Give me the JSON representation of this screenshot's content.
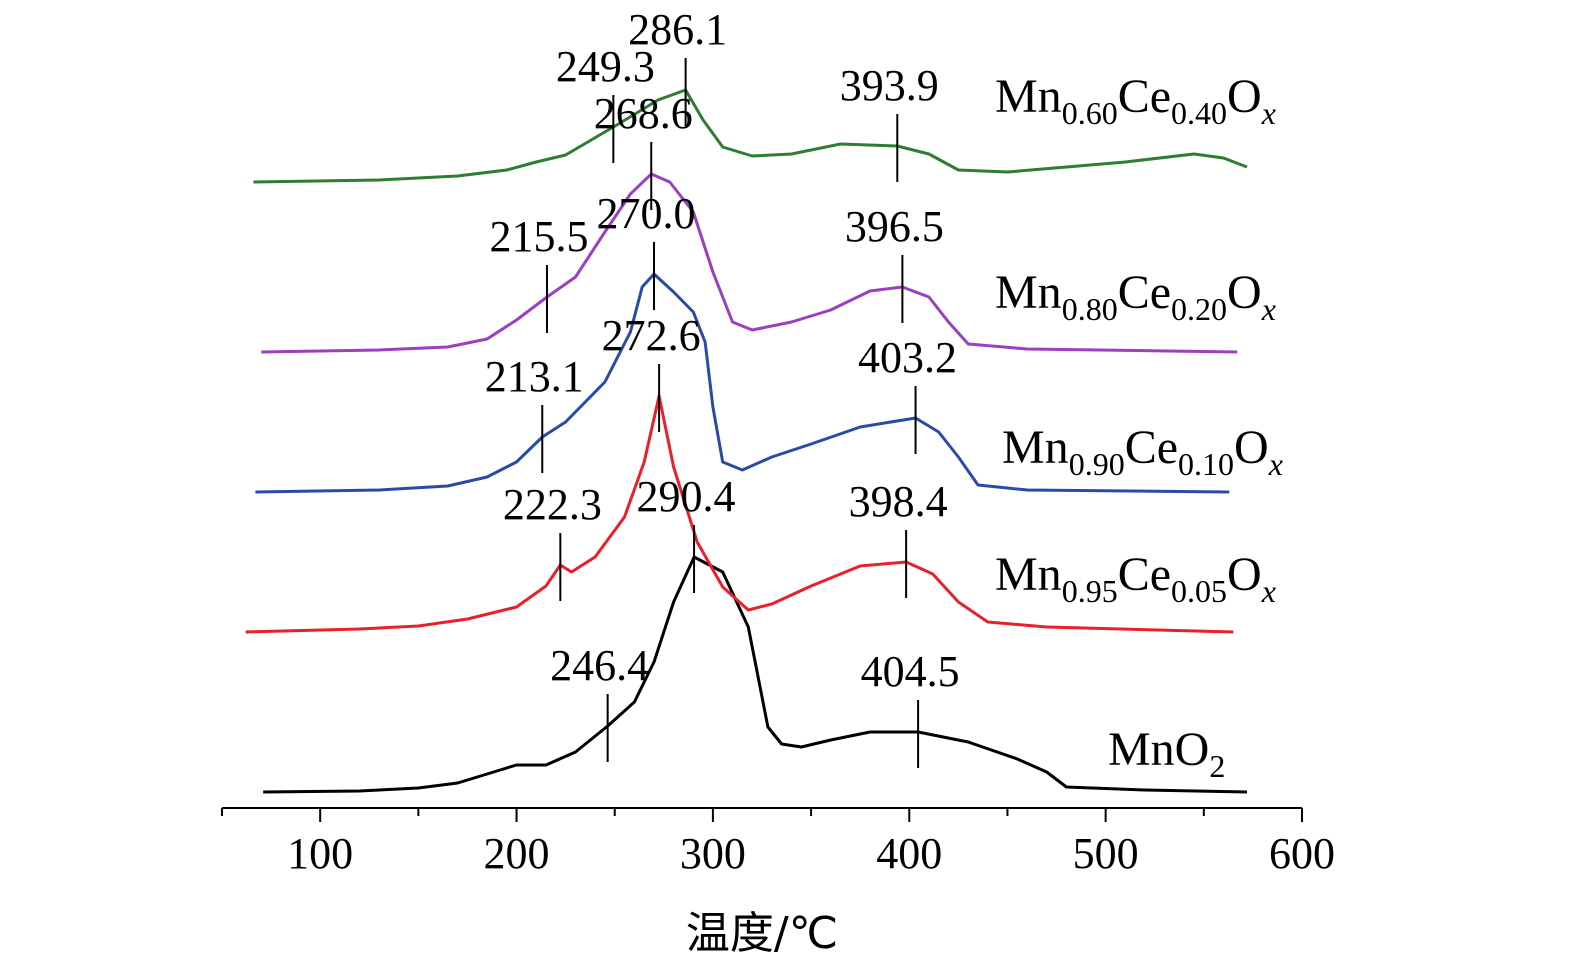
{
  "chart_data": {
    "type": "line",
    "xlabel": "温度/℃",
    "xlim": [
      50,
      600
    ],
    "xticks": [
      100,
      200,
      300,
      400,
      500,
      600
    ],
    "grid": false,
    "series": [
      {
        "name": "MnO2",
        "label": {
          "main": "MnO",
          "sub": "2"
        },
        "color": "#000000",
        "offset": 0,
        "points": [
          [
            71,
            0
          ],
          [
            120,
            1
          ],
          [
            150,
            4
          ],
          [
            170,
            9
          ],
          [
            190,
            21
          ],
          [
            200,
            27
          ],
          [
            215,
            27
          ],
          [
            230,
            40
          ],
          [
            246.4,
            66
          ],
          [
            260,
            90
          ],
          [
            270,
            130
          ],
          [
            280,
            190
          ],
          [
            290.4,
            235
          ],
          [
            305,
            220
          ],
          [
            318,
            165
          ],
          [
            328,
            65
          ],
          [
            335,
            48
          ],
          [
            345,
            45
          ],
          [
            360,
            52
          ],
          [
            380,
            60
          ],
          [
            404.5,
            60
          ],
          [
            430,
            50
          ],
          [
            455,
            33
          ],
          [
            470,
            20
          ],
          [
            480,
            5
          ],
          [
            520,
            2
          ],
          [
            572,
            0
          ]
        ],
        "peaks": [
          246.4,
          290.4,
          404.5
        ]
      },
      {
        "name": "Mn0.95Ce0.05Ox",
        "label": {
          "main1": "Mn",
          "sub1": "0.95",
          "main2": "Ce",
          "sub2": "0.05",
          "main3": "O",
          "sub3": "x"
        },
        "color": "#e8202a",
        "offset": 160,
        "points": [
          [
            62,
            0
          ],
          [
            120,
            3
          ],
          [
            150,
            6
          ],
          [
            175,
            13
          ],
          [
            200,
            25
          ],
          [
            215,
            46
          ],
          [
            222.3,
            67
          ],
          [
            228,
            60
          ],
          [
            240,
            75
          ],
          [
            255,
            115
          ],
          [
            265,
            170
          ],
          [
            272.6,
            236
          ],
          [
            280,
            165
          ],
          [
            292,
            90
          ],
          [
            305,
            45
          ],
          [
            318,
            22
          ],
          [
            330,
            28
          ],
          [
            350,
            46
          ],
          [
            375,
            66
          ],
          [
            398.4,
            70
          ],
          [
            412,
            58
          ],
          [
            425,
            30
          ],
          [
            440,
            10
          ],
          [
            470,
            5
          ],
          [
            565,
            0
          ]
        ],
        "peaks": [
          222.3,
          272.6,
          398.4
        ]
      },
      {
        "name": "Mn0.90Ce0.10Ox",
        "label": {
          "main1": "Mn",
          "sub1": "0.90",
          "main2": "Ce",
          "sub2": "0.10",
          "main3": "O",
          "sub3": "x"
        },
        "color": "#2b4aa8",
        "offset": 300,
        "points": [
          [
            67,
            0
          ],
          [
            130,
            2
          ],
          [
            165,
            6
          ],
          [
            185,
            15
          ],
          [
            200,
            30
          ],
          [
            213.1,
            55
          ],
          [
            225,
            70
          ],
          [
            245,
            110
          ],
          [
            258,
            160
          ],
          [
            264,
            205
          ],
          [
            270,
            218
          ],
          [
            280,
            200
          ],
          [
            290,
            180
          ],
          [
            296,
            150
          ],
          [
            300,
            85
          ],
          [
            305,
            30
          ],
          [
            315,
            22
          ],
          [
            330,
            35
          ],
          [
            350,
            48
          ],
          [
            375,
            65
          ],
          [
            403.2,
            74
          ],
          [
            415,
            60
          ],
          [
            425,
            35
          ],
          [
            435,
            7
          ],
          [
            460,
            2
          ],
          [
            563,
            0
          ]
        ],
        "peaks": [
          213.1,
          270.0,
          403.2
        ]
      },
      {
        "name": "Mn0.80Ce0.20Ox",
        "label": {
          "main1": "Mn",
          "sub1": "0.80",
          "main2": "Ce",
          "sub2": "0.20",
          "main3": "O",
          "sub3": "x"
        },
        "color": "#9b3fc0",
        "offset": 440,
        "points": [
          [
            70,
            0
          ],
          [
            130,
            2
          ],
          [
            165,
            5
          ],
          [
            185,
            13
          ],
          [
            200,
            32
          ],
          [
            215.5,
            55
          ],
          [
            230,
            75
          ],
          [
            245,
            120
          ],
          [
            258,
            158
          ],
          [
            268.6,
            178
          ],
          [
            278,
            170
          ],
          [
            290,
            140
          ],
          [
            300,
            80
          ],
          [
            310,
            30
          ],
          [
            320,
            22
          ],
          [
            340,
            30
          ],
          [
            360,
            42
          ],
          [
            380,
            61
          ],
          [
            396.5,
            65
          ],
          [
            410,
            55
          ],
          [
            420,
            30
          ],
          [
            430,
            8
          ],
          [
            460,
            3
          ],
          [
            567,
            0
          ]
        ],
        "peaks": [
          215.5,
          268.6,
          396.5
        ]
      },
      {
        "name": "Mn0.60Ce0.40Ox",
        "label": {
          "main1": "Mn",
          "sub1": "0.60",
          "main2": "Ce",
          "sub2": "0.40",
          "main3": "O",
          "sub3": "x"
        },
        "color": "#2e7d32",
        "offset": 610,
        "points": [
          [
            66,
            0
          ],
          [
            130,
            2
          ],
          [
            170,
            6
          ],
          [
            195,
            12
          ],
          [
            210,
            20
          ],
          [
            225,
            27
          ],
          [
            238,
            42
          ],
          [
            249.3,
            55
          ],
          [
            262,
            70
          ],
          [
            272,
            82
          ],
          [
            286.1,
            92
          ],
          [
            295,
            62
          ],
          [
            305,
            35
          ],
          [
            320,
            26
          ],
          [
            340,
            28
          ],
          [
            365,
            38
          ],
          [
            393.9,
            36
          ],
          [
            410,
            28
          ],
          [
            425,
            12
          ],
          [
            450,
            10
          ],
          [
            480,
            15
          ],
          [
            510,
            20
          ],
          [
            545,
            28
          ],
          [
            560,
            24
          ],
          [
            572,
            15
          ]
        ],
        "peaks": [
          249.3,
          286.1,
          393.9
        ]
      }
    ],
    "peak_labels": [
      "246.4",
      "290.4",
      "404.5",
      "222.3",
      "272.6",
      "398.4",
      "213.1",
      "270.0",
      "403.2",
      "215.5",
      "268.6",
      "396.5",
      "249.3",
      "286.1",
      "393.9"
    ]
  }
}
